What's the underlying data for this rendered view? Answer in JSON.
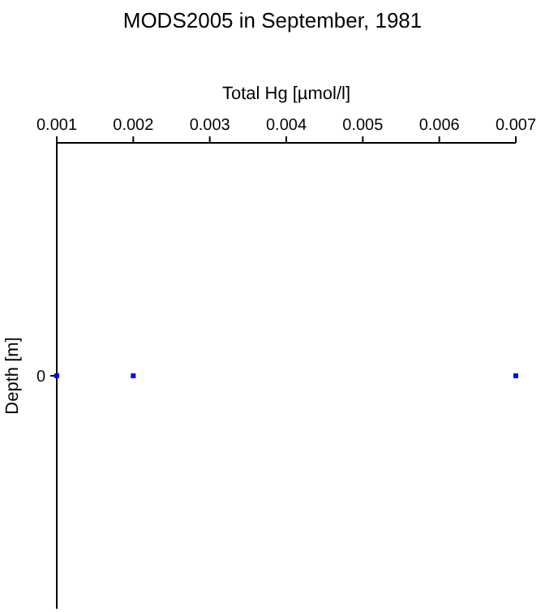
{
  "chart_data": {
    "type": "scatter",
    "title": "MODS2005 in September, 1981",
    "xlabel": "Total Hg [µmol/l]",
    "ylabel": "Depth [m]",
    "orientation": "horizontal",
    "categories": [
      "0"
    ],
    "series": [
      {
        "color": "#0000ff",
        "values": [
          0.001
        ]
      },
      {
        "color": "#0000ff",
        "values": [
          0.002
        ]
      },
      {
        "color": "#0000ff",
        "values": [
          0.007
        ]
      }
    ],
    "xlim": [
      0.001,
      0.007
    ],
    "xticks": [
      0.001,
      0.002,
      0.003,
      0.004,
      0.005,
      0.006,
      0.007
    ],
    "marker": "square"
  }
}
